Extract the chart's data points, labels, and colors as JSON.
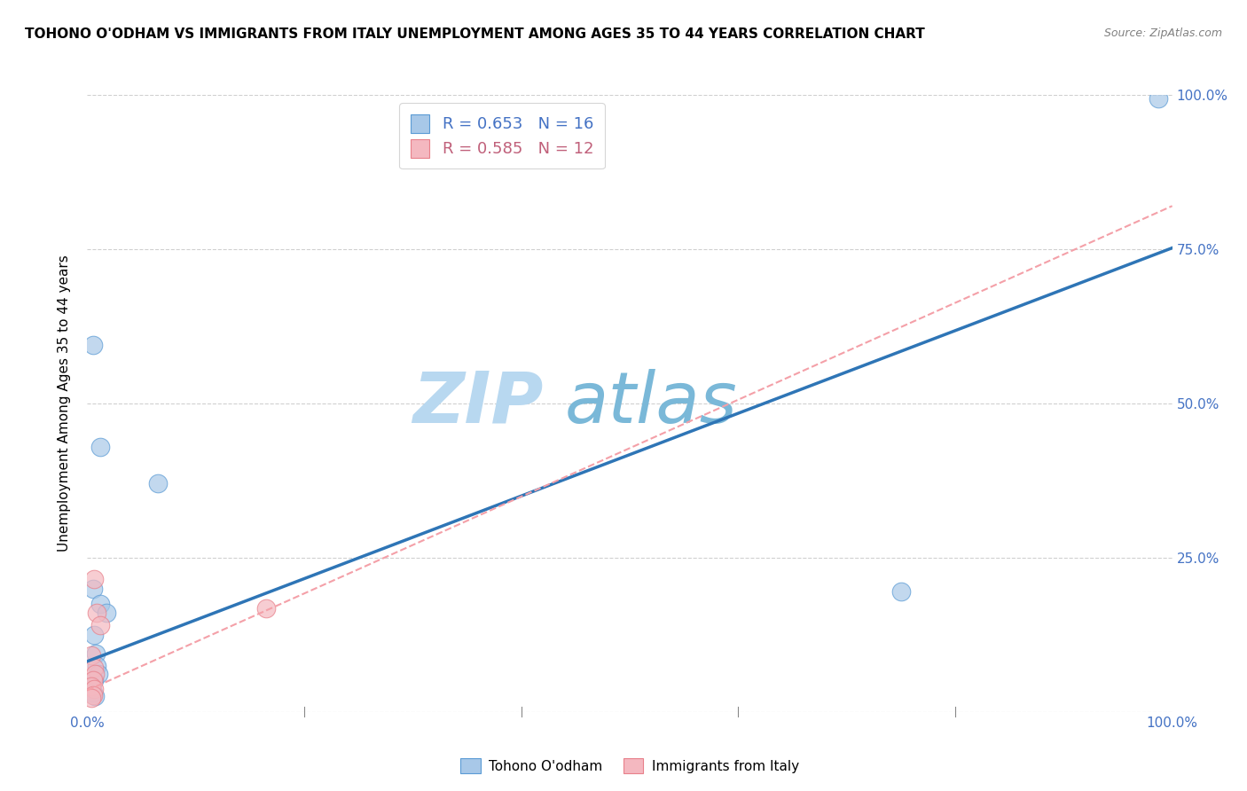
{
  "title": "TOHONO O'ODHAM VS IMMIGRANTS FROM ITALY UNEMPLOYMENT AMONG AGES 35 TO 44 YEARS CORRELATION CHART",
  "source": "Source: ZipAtlas.com",
  "ylabel": "Unemployment Among Ages 35 to 44 years",
  "xlim": [
    0.0,
    1.0
  ],
  "ylim": [
    0.0,
    1.0
  ],
  "legend_label1": "Tohono O'odham",
  "legend_label2": "Immigrants from Italy",
  "R1": "0.653",
  "N1": "16",
  "R2": "0.585",
  "N2": "12",
  "blue_scatter_color": "#a8c8e8",
  "blue_scatter_edge": "#5b9bd5",
  "pink_scatter_color": "#f4b8c0",
  "pink_scatter_edge": "#e8808a",
  "blue_line_color": "#2e75b6",
  "pink_line_color": "#f4a0a8",
  "blue_scatter": [
    [
      0.005,
      0.595
    ],
    [
      0.012,
      0.43
    ],
    [
      0.065,
      0.37
    ],
    [
      0.005,
      0.2
    ],
    [
      0.012,
      0.175
    ],
    [
      0.018,
      0.16
    ],
    [
      0.006,
      0.125
    ],
    [
      0.008,
      0.095
    ],
    [
      0.009,
      0.075
    ],
    [
      0.01,
      0.062
    ],
    [
      0.006,
      0.052
    ],
    [
      0.004,
      0.042
    ],
    [
      0.005,
      0.032
    ],
    [
      0.007,
      0.026
    ],
    [
      0.75,
      0.195
    ],
    [
      0.987,
      0.995
    ]
  ],
  "pink_scatter": [
    [
      0.006,
      0.215
    ],
    [
      0.009,
      0.16
    ],
    [
      0.012,
      0.14
    ],
    [
      0.004,
      0.092
    ],
    [
      0.006,
      0.072
    ],
    [
      0.007,
      0.062
    ],
    [
      0.005,
      0.052
    ],
    [
      0.004,
      0.042
    ],
    [
      0.006,
      0.037
    ],
    [
      0.005,
      0.027
    ],
    [
      0.004,
      0.022
    ],
    [
      0.165,
      0.168
    ]
  ],
  "blue_trendline": [
    [
      0.0,
      0.082
    ],
    [
      1.0,
      0.752
    ]
  ],
  "pink_trendline": [
    [
      0.0,
      0.035
    ],
    [
      1.0,
      0.82
    ]
  ],
  "background_color": "#ffffff",
  "grid_color": "#d0d0d0",
  "watermark_color": "#cce4f5",
  "watermark_fontsize": 58,
  "title_fontsize": 11,
  "axis_tick_fontsize": 11,
  "axis_tick_color": "#4472c4",
  "legend_text_color1": "#4472c4",
  "legend_text_color2": "#c0607a"
}
